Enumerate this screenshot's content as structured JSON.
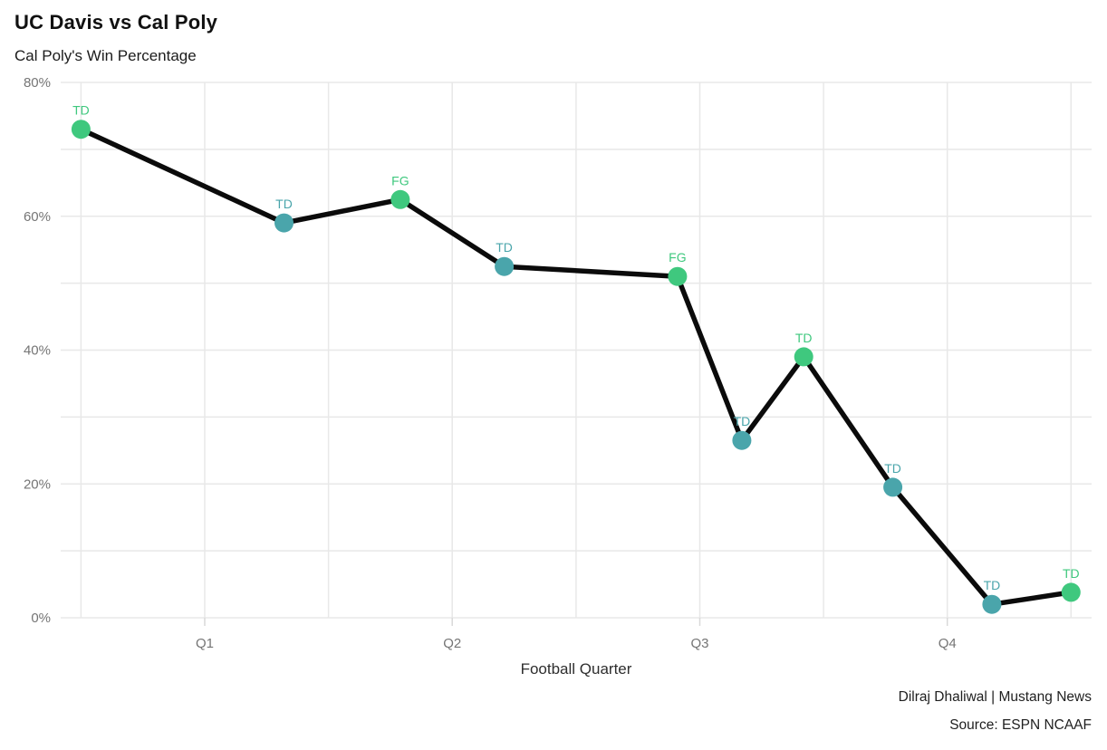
{
  "header": {
    "title": "UC Davis vs Cal Poly",
    "subtitle": "Cal Poly's Win Percentage"
  },
  "chart_data": {
    "type": "line",
    "title": "UC Davis vs Cal Poly",
    "subtitle": "Cal Poly's Win Percentage",
    "xlabel": "Football Quarter",
    "ylabel": "",
    "x_range": [
      0.418,
      4.583
    ],
    "y_range": [
      0,
      80
    ],
    "x_ticks": [
      {
        "v": 1,
        "label": "Q1"
      },
      {
        "v": 2,
        "label": "Q2"
      },
      {
        "v": 3,
        "label": "Q3"
      },
      {
        "v": 4,
        "label": "Q4"
      }
    ],
    "x_gridlines": [
      0.5,
      1,
      1.5,
      2,
      2.5,
      3,
      3.5,
      4,
      4.5
    ],
    "y_ticks": [
      {
        "v": 80,
        "label": "80%"
      },
      {
        "v": 60,
        "label": "60%"
      },
      {
        "v": 40,
        "label": "40%"
      },
      {
        "v": 20,
        "label": "20%"
      },
      {
        "v": 0,
        "label": "0%"
      }
    ],
    "y_gridlines": [
      0,
      10,
      20,
      30,
      40,
      50,
      60,
      70,
      80
    ],
    "points": [
      {
        "x": 0.5,
        "y": 73.0,
        "label": "TD",
        "marker": "green"
      },
      {
        "x": 1.32,
        "y": 59.0,
        "label": "TD",
        "marker": "teal"
      },
      {
        "x": 1.79,
        "y": 62.5,
        "label": "FG",
        "marker": "green"
      },
      {
        "x": 2.21,
        "y": 52.5,
        "label": "TD",
        "marker": "teal"
      },
      {
        "x": 2.91,
        "y": 51.0,
        "label": "FG",
        "marker": "green"
      },
      {
        "x": 3.17,
        "y": 26.5,
        "label": "TD",
        "marker": "teal"
      },
      {
        "x": 3.42,
        "y": 39.0,
        "label": "TD",
        "marker": "green"
      },
      {
        "x": 3.78,
        "y": 19.5,
        "label": "TD",
        "marker": "teal"
      },
      {
        "x": 4.18,
        "y": 2.0,
        "label": "TD",
        "marker": "teal"
      },
      {
        "x": 4.5,
        "y": 3.8,
        "label": "TD",
        "marker": "green"
      }
    ],
    "colors": {
      "green": "#3fc87e",
      "teal": "#4aa5ab",
      "line": "#0b0b0b",
      "grid": "#e8e8e8",
      "tick": "#d9d9d9",
      "axis_text": "#757575"
    },
    "grid": true,
    "legend": "none"
  },
  "footer": {
    "credit": "Dilraj Dhaliwal | Mustang News",
    "source": "Source: ESPN NCAAF"
  }
}
